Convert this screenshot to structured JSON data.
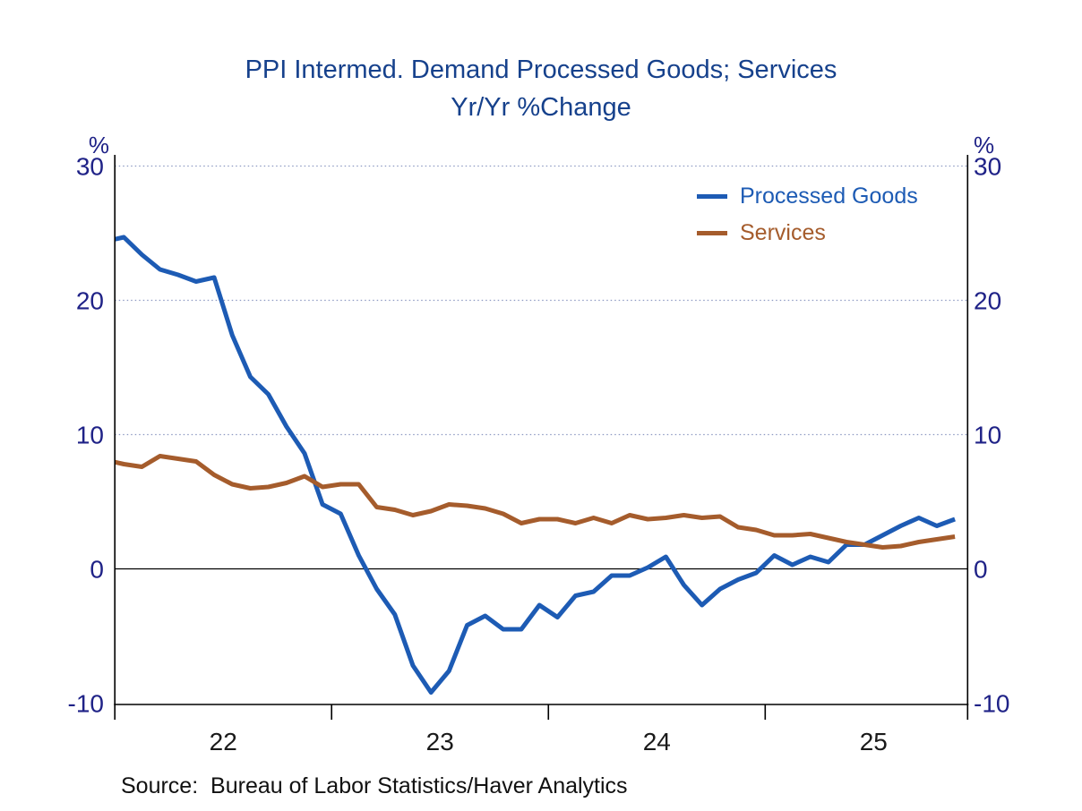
{
  "title": {
    "line1": "PPI Intermed. Demand Processed Goods; Services",
    "line2": "Yr/Yr %Change"
  },
  "axes": {
    "left_unit": "%",
    "right_unit": "%",
    "y_tick_labels": [
      "30",
      "20",
      "10",
      "0",
      "-10"
    ],
    "y_tick_values": [
      30,
      20,
      10,
      0,
      -10
    ],
    "x_tick_labels": [
      "22",
      "23",
      "24",
      "25"
    ]
  },
  "legend": {
    "items": [
      {
        "label": "Processed Goods",
        "color": "#1d5bb4"
      },
      {
        "label": "Services",
        "color": "#a55c2c"
      }
    ]
  },
  "source": {
    "text": "Source:  Bureau of Labor Statistics/Haver Analytics"
  },
  "colors": {
    "title": "#16418c",
    "y_axis_labels": "#1f2287",
    "x_axis_labels": "#1a1a1a",
    "gridline": "#8d99c2",
    "zero_line": "#000000",
    "spine": "#000000"
  },
  "chart_data": {
    "type": "line",
    "title": "PPI Intermed. Demand Processed Goods; Services",
    "subtitle": "Yr/Yr %Change",
    "ylabel": "%",
    "ylim": [
      -10,
      30
    ],
    "y_ticks": [
      30,
      20,
      10,
      0,
      -10
    ],
    "grid": "dotted horizontal gridlines at 10, 20, 30; solid black line at 0",
    "legend_position": "upper right inside plot",
    "x_tick_years": [
      "22",
      "23",
      "24",
      "25"
    ],
    "categories": [
      "2021-12",
      "2022-01",
      "2022-02",
      "2022-03",
      "2022-04",
      "2022-05",
      "2022-06",
      "2022-07",
      "2022-08",
      "2022-09",
      "2022-10",
      "2022-11",
      "2022-12",
      "2023-01",
      "2023-02",
      "2023-03",
      "2023-04",
      "2023-05",
      "2023-06",
      "2023-07",
      "2023-08",
      "2023-09",
      "2023-10",
      "2023-11",
      "2023-12",
      "2024-01",
      "2024-02",
      "2024-03",
      "2024-04",
      "2024-05",
      "2024-06",
      "2024-07",
      "2024-08",
      "2024-09",
      "2024-10",
      "2024-11",
      "2024-12",
      "2025-01",
      "2025-02",
      "2025-03",
      "2025-04",
      "2025-05",
      "2025-06",
      "2025-07",
      "2025-08",
      "2025-09",
      "2025-10",
      "2025-11"
    ],
    "series": [
      {
        "name": "Processed Goods",
        "color": "#1d5bb4",
        "values": [
          24.4,
          24.7,
          23.4,
          22.3,
          21.9,
          21.4,
          21.7,
          17.4,
          14.3,
          13.0,
          10.6,
          8.6,
          4.8,
          4.1,
          1.0,
          -1.5,
          -3.4,
          -7.2,
          -9.2,
          -7.6,
          -4.2,
          -3.5,
          -4.5,
          -4.5,
          -2.7,
          -3.6,
          -2.0,
          -1.7,
          -0.5,
          -0.5,
          0.1,
          0.9,
          -1.2,
          -2.7,
          -1.5,
          -0.8,
          -0.3,
          1.0,
          0.3,
          0.9,
          0.5,
          1.8,
          1.8,
          2.5,
          3.2,
          3.8,
          3.2,
          3.7
        ]
      },
      {
        "name": "Services",
        "color": "#a55c2c",
        "values": [
          8.1,
          7.8,
          7.6,
          8.4,
          8.2,
          8.0,
          7.0,
          6.3,
          6.0,
          6.1,
          6.4,
          6.9,
          6.1,
          6.3,
          6.3,
          4.6,
          4.4,
          4.0,
          4.3,
          4.8,
          4.7,
          4.5,
          4.1,
          3.4,
          3.7,
          3.7,
          3.4,
          3.8,
          3.4,
          4.0,
          3.7,
          3.8,
          4.0,
          3.8,
          3.9,
          3.1,
          2.9,
          2.5,
          2.5,
          2.6,
          2.3,
          2.0,
          1.8,
          1.6,
          1.7,
          2.0,
          2.2,
          2.4
        ]
      }
    ]
  }
}
